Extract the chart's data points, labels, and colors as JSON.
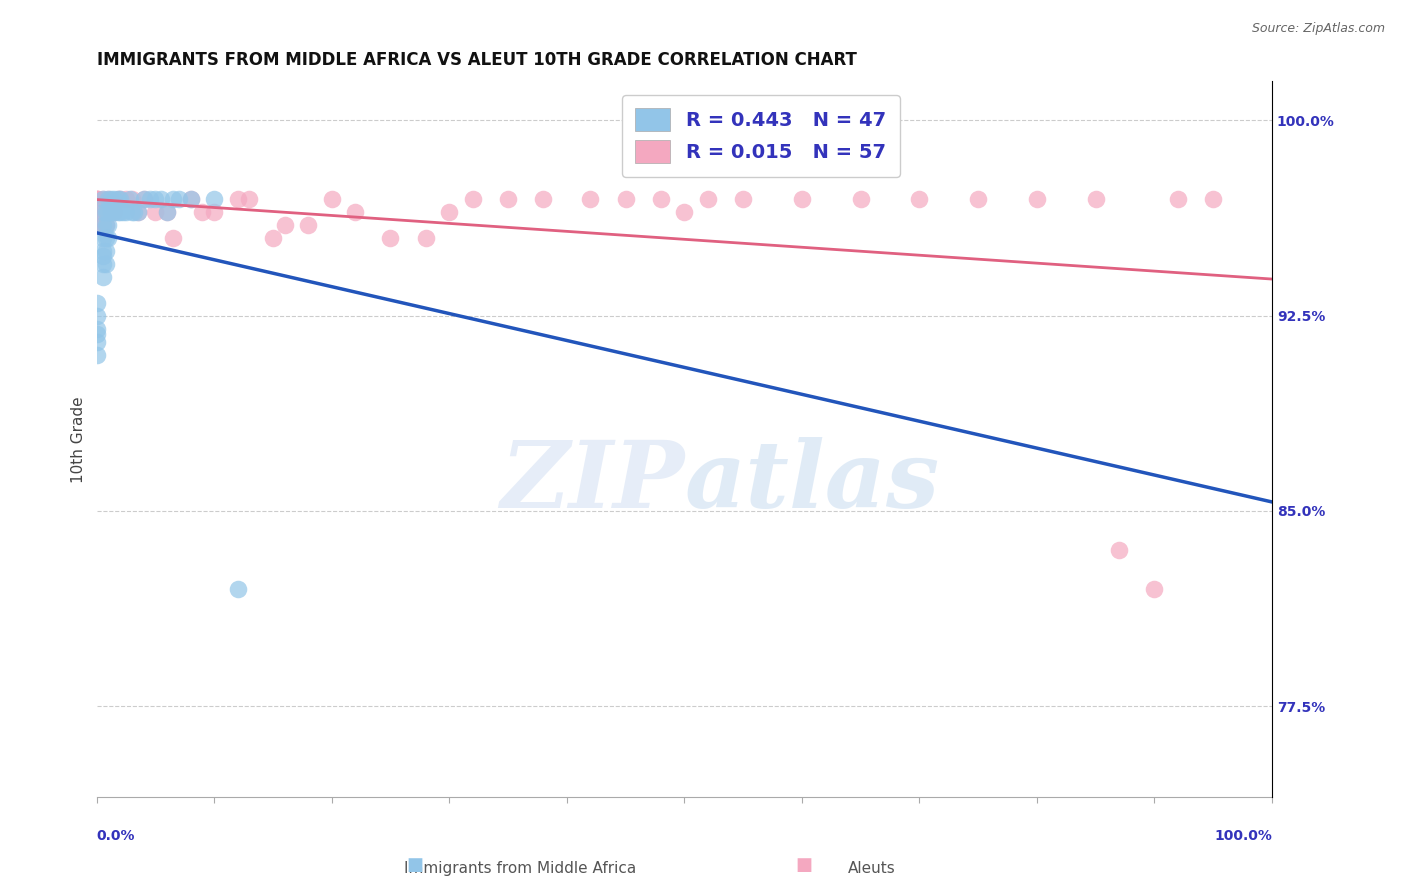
{
  "title": "IMMIGRANTS FROM MIDDLE AFRICA VS ALEUT 10TH GRADE CORRELATION CHART",
  "source": "Source: ZipAtlas.com",
  "ylabel": "10th Grade",
  "watermark": "ZIPatlas",
  "r_blue": 0.443,
  "n_blue": 47,
  "r_pink": 0.015,
  "n_pink": 57,
  "ymin": 0.74,
  "ymax": 1.015,
  "xmin": 0.0,
  "xmax": 1.0,
  "yticks": [
    0.775,
    0.85,
    0.925,
    1.0
  ],
  "ytick_labels": [
    "77.5%",
    "85.0%",
    "92.5%",
    "100.0%"
  ],
  "blue_color": "#92C5E8",
  "pink_color": "#F4A8C0",
  "trend_blue": "#2255BB",
  "trend_pink": "#E06080",
  "blue_scatter_x": [
    0.0,
    0.0,
    0.0,
    0.0,
    0.0,
    0.0,
    0.005,
    0.005,
    0.005,
    0.005,
    0.005,
    0.005,
    0.005,
    0.005,
    0.008,
    0.008,
    0.008,
    0.008,
    0.008,
    0.01,
    0.01,
    0.01,
    0.01,
    0.012,
    0.012,
    0.015,
    0.015,
    0.018,
    0.018,
    0.02,
    0.02,
    0.022,
    0.025,
    0.028,
    0.03,
    0.032,
    0.035,
    0.04,
    0.045,
    0.05,
    0.055,
    0.06,
    0.065,
    0.07,
    0.08,
    0.1,
    0.12
  ],
  "blue_scatter_y": [
    0.93,
    0.925,
    0.92,
    0.918,
    0.915,
    0.91,
    0.97,
    0.965,
    0.96,
    0.955,
    0.95,
    0.948,
    0.945,
    0.94,
    0.965,
    0.96,
    0.955,
    0.95,
    0.945,
    0.97,
    0.965,
    0.96,
    0.955,
    0.97,
    0.965,
    0.97,
    0.965,
    0.97,
    0.965,
    0.97,
    0.965,
    0.965,
    0.965,
    0.97,
    0.965,
    0.965,
    0.965,
    0.97,
    0.97,
    0.97,
    0.97,
    0.965,
    0.97,
    0.97,
    0.97,
    0.97,
    0.82
  ],
  "pink_scatter_x": [
    0.0,
    0.0,
    0.0,
    0.0,
    0.0,
    0.0,
    0.0,
    0.005,
    0.005,
    0.005,
    0.008,
    0.008,
    0.01,
    0.01,
    0.012,
    0.015,
    0.018,
    0.02,
    0.025,
    0.03,
    0.035,
    0.04,
    0.05,
    0.06,
    0.065,
    0.08,
    0.09,
    0.1,
    0.12,
    0.13,
    0.15,
    0.16,
    0.18,
    0.2,
    0.22,
    0.25,
    0.28,
    0.3,
    0.32,
    0.35,
    0.38,
    0.42,
    0.45,
    0.48,
    0.5,
    0.52,
    0.55,
    0.6,
    0.65,
    0.7,
    0.75,
    0.8,
    0.85,
    0.87,
    0.9,
    0.92,
    0.95
  ],
  "pink_scatter_y": [
    0.97,
    0.97,
    0.97,
    0.97,
    0.965,
    0.965,
    0.96,
    0.97,
    0.965,
    0.96,
    0.965,
    0.96,
    0.97,
    0.965,
    0.965,
    0.965,
    0.97,
    0.97,
    0.97,
    0.97,
    0.965,
    0.97,
    0.965,
    0.965,
    0.955,
    0.97,
    0.965,
    0.965,
    0.97,
    0.97,
    0.955,
    0.96,
    0.96,
    0.97,
    0.965,
    0.955,
    0.955,
    0.965,
    0.97,
    0.97,
    0.97,
    0.97,
    0.97,
    0.97,
    0.965,
    0.97,
    0.97,
    0.97,
    0.97,
    0.97,
    0.97,
    0.97,
    0.97,
    0.835,
    0.82,
    0.97,
    0.97
  ],
  "grid_color": "#CCCCCC",
  "background_color": "#FFFFFF",
  "title_fontsize": 12,
  "axis_label_fontsize": 11,
  "tick_fontsize": 10,
  "right_tick_color": "#3333BB",
  "bottom_tick_color": "#3333BB"
}
